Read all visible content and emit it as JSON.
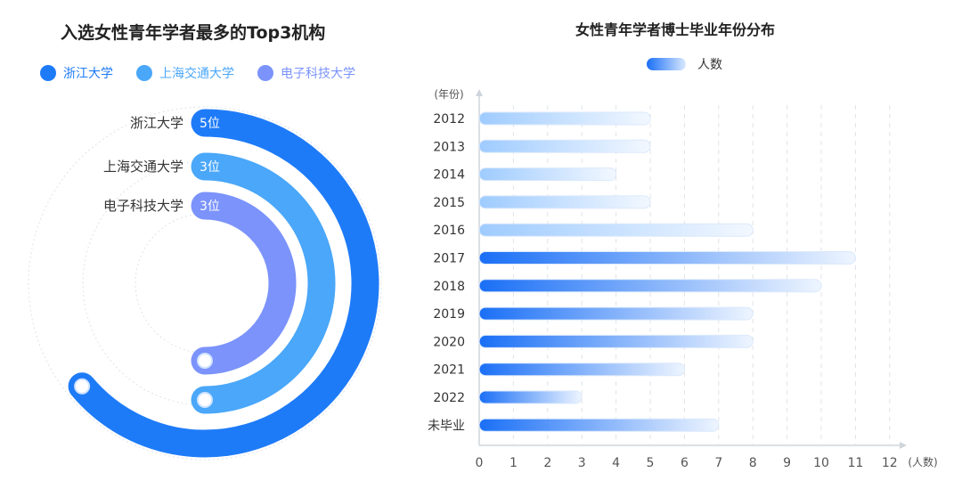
{
  "radial": {
    "title": "入选女性青年学者最多的Top3机构",
    "legend": [
      {
        "name": "浙江大学",
        "color": "#1e7bf8"
      },
      {
        "name": "上海交通大学",
        "color": "#4aa7f9"
      },
      {
        "name": "电子科技大学",
        "color": "#7b93fb"
      }
    ]
  },
  "bar": {
    "title": "女性青年学者博士毕业年份分布",
    "legend": "人数",
    "y_unit": "(年份)",
    "x_unit": "(人数)"
  },
  "chart_data": [
    {
      "type": "radial-bar",
      "title": "入选女性青年学者最多的Top3机构",
      "categories": [
        "浙江大学",
        "上海交通大学",
        "电子科技大学"
      ],
      "values": [
        5,
        3,
        3
      ],
      "value_labels": [
        "5位",
        "3位",
        "3位"
      ],
      "colors": [
        "#1e7bf8",
        "#4aa7f9",
        "#7b93fb"
      ]
    },
    {
      "type": "bar",
      "orientation": "horizontal",
      "title": "女性青年学者博士毕业年份分布",
      "categories": [
        "2012",
        "2013",
        "2014",
        "2015",
        "2016",
        "2017",
        "2018",
        "2019",
        "2020",
        "2021",
        "2022",
        "未毕业"
      ],
      "values": [
        5,
        5,
        4,
        5,
        8,
        11,
        10,
        8,
        8,
        6,
        3,
        7
      ],
      "x_ticks": [
        "0",
        "1",
        "2",
        "3",
        "4",
        "5",
        "6",
        "7",
        "8",
        "9",
        "10",
        "11",
        "12"
      ],
      "xlim": [
        0,
        12
      ],
      "legend": "人数",
      "ylabel": "(年份)",
      "xlabel": "(人数)",
      "grid": true
    }
  ]
}
